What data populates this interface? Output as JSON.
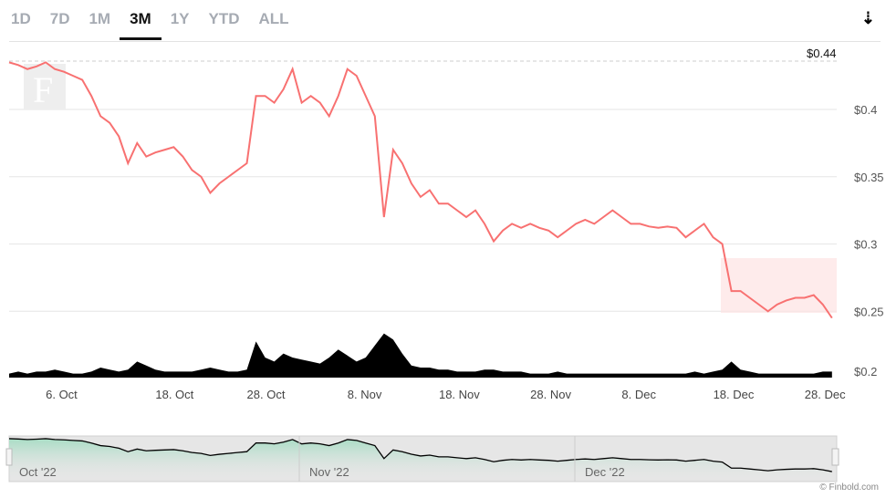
{
  "tabs": [
    "1D",
    "7D",
    "1M",
    "3M",
    "1Y",
    "YTD",
    "ALL"
  ],
  "active_tab": "3M",
  "download_icon": "download-arrow-icon",
  "credit": "© Finbold.com",
  "colors": {
    "line": "#f87171",
    "volume": "#000000",
    "nav_fill": "#a8dcc4"
  },
  "chart_data": {
    "type": "line",
    "title": "",
    "max_label": "$0.44",
    "y_ticks": [
      "$0.4",
      "$0.35",
      "$0.3",
      "$0.25",
      "$0.2"
    ],
    "y_tick_values": [
      0.4,
      0.35,
      0.3,
      0.25,
      0.2
    ],
    "x_ticks": [
      "6. Oct",
      "18. Oct",
      "28. Oct",
      "8. Nov",
      "18. Nov",
      "28. Nov",
      "8. Dec",
      "18. Dec",
      "28. Dec"
    ],
    "x_tick_days": [
      6,
      18,
      28,
      39,
      49,
      59,
      69,
      79,
      89
    ],
    "nav_labels": [
      "Oct '22",
      "Nov '22",
      "Dec '22"
    ],
    "start": "30 Sep",
    "prices": [
      0.435,
      0.433,
      0.43,
      0.432,
      0.435,
      0.43,
      0.428,
      0.425,
      0.422,
      0.41,
      0.395,
      0.39,
      0.38,
      0.36,
      0.375,
      0.365,
      0.368,
      0.37,
      0.372,
      0.365,
      0.355,
      0.35,
      0.338,
      0.345,
      0.35,
      0.355,
      0.36,
      0.41,
      0.41,
      0.405,
      0.415,
      0.43,
      0.405,
      0.41,
      0.405,
      0.395,
      0.41,
      0.43,
      0.425,
      0.41,
      0.395,
      0.32,
      0.37,
      0.36,
      0.345,
      0.335,
      0.34,
      0.33,
      0.33,
      0.325,
      0.32,
      0.325,
      0.315,
      0.302,
      0.31,
      0.315,
      0.312,
      0.315,
      0.312,
      0.31,
      0.305,
      0.31,
      0.315,
      0.318,
      0.315,
      0.32,
      0.325,
      0.32,
      0.315,
      0.315,
      0.313,
      0.312,
      0.313,
      0.312,
      0.305,
      0.31,
      0.315,
      0.305,
      0.3,
      0.265,
      0.265,
      0.26,
      0.255,
      0.25,
      0.255,
      0.258,
      0.26,
      0.26,
      0.262,
      0.255,
      0.245
    ],
    "volume": [
      2,
      3,
      2,
      3,
      3,
      4,
      3,
      2,
      2,
      3,
      5,
      4,
      3,
      4,
      8,
      6,
      4,
      3,
      3,
      3,
      3,
      4,
      5,
      4,
      3,
      3,
      4,
      18,
      10,
      8,
      12,
      10,
      9,
      8,
      7,
      10,
      14,
      11,
      8,
      10,
      16,
      22,
      19,
      12,
      6,
      5,
      5,
      4,
      4,
      3,
      3,
      3,
      4,
      4,
      3,
      3,
      3,
      2,
      2,
      2,
      3,
      2,
      2,
      2,
      2,
      2,
      2,
      2,
      2,
      2,
      2,
      2,
      2,
      2,
      2,
      3,
      2,
      3,
      4,
      8,
      4,
      3,
      2,
      2,
      2,
      2,
      2,
      2,
      2,
      3,
      3
    ],
    "ylim": [
      0.2,
      0.44
    ]
  }
}
